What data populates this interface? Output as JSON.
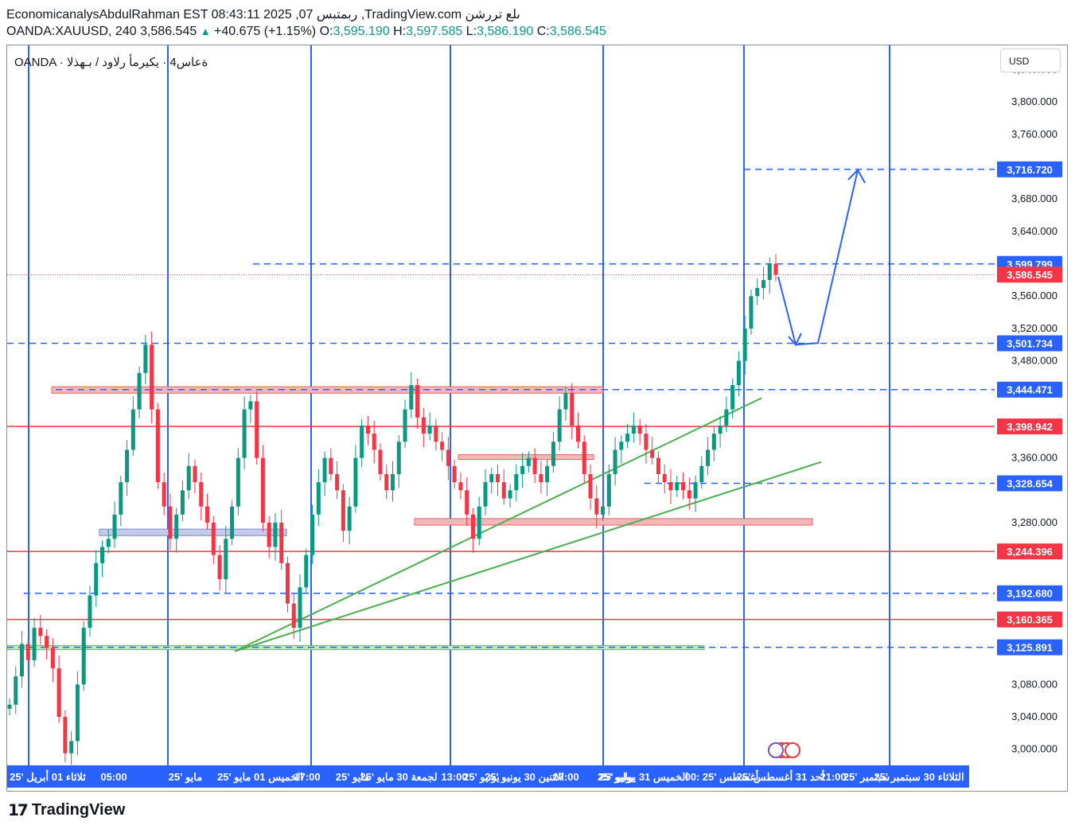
{
  "header": {
    "line1": "EconomicanalysAbdulRahman EST 08:43:11 2025 ,07 ربمتبس ,TradingView.com ىلع تررشن",
    "symbol": "OANDA:XAUUSD, 240",
    "last": "3,586.545",
    "change": "+40.675 (+1.15%)",
    "o_label": "O:",
    "o": "3,595.190",
    "h_label": "H:",
    "h": "3,597.585",
    "l_label": "L:",
    "l": "3,586.190",
    "c_label": "C:",
    "c": "3,586.545"
  },
  "chart_title": "OANDA · ةعاس4 · يكيرمأ رلاود / بـهذلا",
  "currency": "USD",
  "brand": "TradingView",
  "colors": {
    "blue": "#2962ff",
    "red": "#f23645",
    "green": "#4caf50",
    "up": "#089981",
    "down": "#f23645"
  },
  "chart_data": {
    "type": "candlestick",
    "y_ticks": [
      "3,840.000",
      "3,800.000",
      "3,760.000",
      "3,680.000",
      "3,640.000",
      "3,560.000",
      "3,520.000",
      "3,480.000",
      "3,360.000",
      "3,280.000",
      "3,080.000",
      "3,040.000",
      "3,000.000"
    ],
    "y_tick_values": [
      3840,
      3800,
      3760,
      3680,
      3640,
      3560,
      3520,
      3480,
      3360,
      3280,
      3080,
      3040,
      3000
    ],
    "ylim": [
      2980,
      3870
    ],
    "x_ticks": [
      "ثلاثاء 01 أبريل '25",
      "05:00",
      "مايو '25",
      "الخميس 01 مايو '25",
      "17:00",
      "مايو '25",
      "لجمعة 30 مايو '25",
      "13:00",
      "يونيو '25",
      "الاثنين 30 يونيو '25",
      "17:00",
      "يوليو '25",
      "الخميس 31 يوليو '25",
      "00:",
      "أغسطس '25",
      "أحد 31 أغسطس '25",
      "21:00",
      "سبتمبر '25",
      "الثلاثاء 30 سبتمبر '25"
    ],
    "price_labels": [
      {
        "text": "3,716.720",
        "value": 3716.72,
        "color": "#2962ff",
        "line": "dashed"
      },
      {
        "text": "3,599.799",
        "value": 3599.8,
        "color": "#2962ff",
        "line": "dashed"
      },
      {
        "text": "3,586.545",
        "value": 3586.545,
        "color": "#f23645",
        "line": "dotted"
      },
      {
        "text": "3,501.734",
        "value": 3501.734,
        "color": "#2962ff",
        "line": "dashed"
      },
      {
        "text": "3,444.471",
        "value": 3444.471,
        "color": "#2962ff",
        "line": "dashed"
      },
      {
        "text": "3,398.942",
        "value": 3398.942,
        "color": "#f23645",
        "line": "solid"
      },
      {
        "text": "3,328.654",
        "value": 3328.654,
        "color": "#2962ff",
        "line": "dashed"
      },
      {
        "text": "3,244.396",
        "value": 3244.396,
        "color": "#f23645",
        "line": "solid"
      },
      {
        "text": "3,192.680",
        "value": 3192.68,
        "color": "#2962ff",
        "line": "dashed"
      },
      {
        "text": "3,160.365",
        "value": 3160.365,
        "color": "#f23645",
        "line": "solid"
      },
      {
        "text": "3,125.891",
        "value": 3125.891,
        "color": "#2962ff",
        "line": "dashed"
      }
    ],
    "zones": [
      {
        "from": 3440,
        "to": 3448,
        "color": "red"
      },
      {
        "from": 3358,
        "to": 3364,
        "color": "red"
      },
      {
        "from": 3277,
        "to": 3285,
        "color": "red"
      },
      {
        "from": 3264,
        "to": 3272,
        "color": "blue"
      },
      {
        "from": 3123,
        "to": 3128,
        "color": "green"
      }
    ],
    "trend": [
      {
        "name": "close",
        "points": [
          3055,
          3090,
          3130,
          3110,
          3150,
          3140,
          3125,
          3100,
          3040,
          2995,
          3010,
          3080,
          3150,
          3190,
          3230,
          3250,
          3260,
          3290,
          3330,
          3370,
          3420,
          3465,
          3500,
          3420,
          3330,
          3300,
          3260,
          3290,
          3320,
          3350,
          3330,
          3300,
          3280,
          3240,
          3210,
          3260,
          3300,
          3360,
          3420,
          3430,
          3360,
          3280,
          3250,
          3280,
          3230,
          3180,
          3150,
          3200,
          3240,
          3290,
          3330,
          3360,
          3340,
          3320,
          3270,
          3300,
          3360,
          3400,
          3390,
          3370,
          3340,
          3320,
          3340,
          3380,
          3420,
          3450,
          3410,
          3390,
          3400,
          3380,
          3370,
          3350,
          3330,
          3320,
          3290,
          3260,
          3300,
          3330,
          3340,
          3330,
          3310,
          3320,
          3340,
          3350,
          3360,
          3340,
          3330,
          3350,
          3380,
          3420,
          3440,
          3400,
          3380,
          3340,
          3310,
          3290,
          3300,
          3340,
          3370,
          3380,
          3390,
          3400,
          3390,
          3370,
          3360,
          3340,
          3330,
          3320,
          3330,
          3320,
          3310,
          3330,
          3350,
          3370,
          3390,
          3400,
          3420,
          3450,
          3480,
          3520,
          3560,
          3570,
          3580,
          3600,
          3586.545
        ]
      }
    ]
  }
}
